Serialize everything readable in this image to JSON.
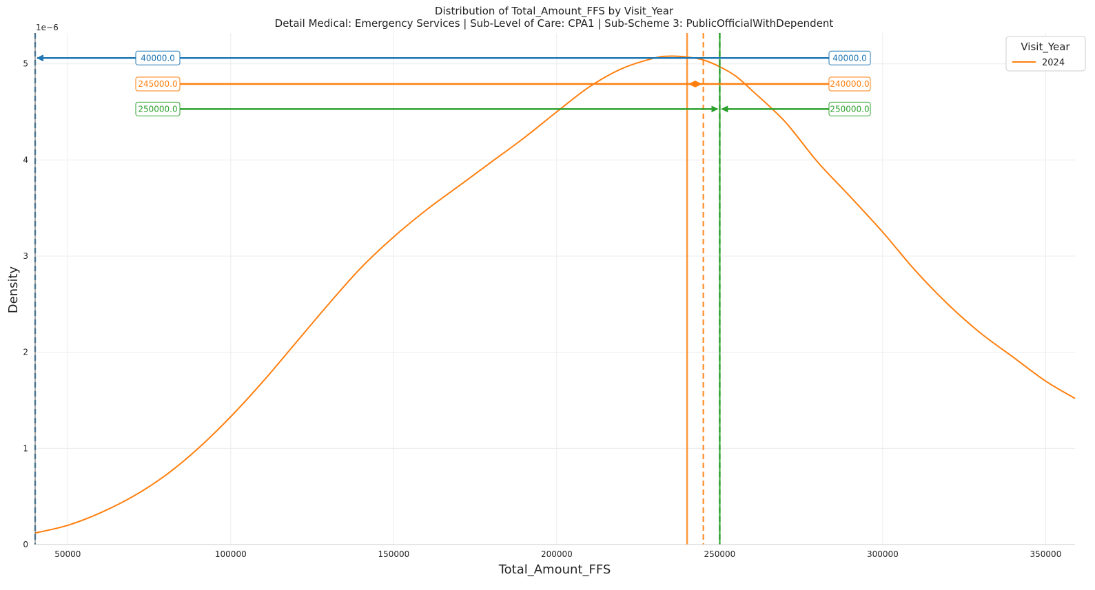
{
  "chart_data": {
    "type": "line",
    "title": "Distribution of Total_Amount_FFS by Visit_Year",
    "subtitle": "Detail Medical: Emergency Services | Sub-Level of Care: CPA1 | Sub-Scheme 3: PublicOfficialWithDependent",
    "xlabel": "Total_Amount_FFS",
    "ylabel": "Density",
    "y_offset_label": "1e−6",
    "xlim": [
      40000,
      359000
    ],
    "ylim": [
      0,
      5.32
    ],
    "x_ticks": [
      50000,
      100000,
      150000,
      200000,
      250000,
      300000,
      350000
    ],
    "y_ticks": [
      0,
      1,
      2,
      3,
      4,
      5
    ],
    "grid": true,
    "legend": {
      "title": "Visit_Year",
      "placement": "top-right",
      "entries": [
        "2024"
      ]
    },
    "series": [
      {
        "name": "2024",
        "color": "#ff7f0e",
        "x": [
          40000,
          50000,
          60000,
          70000,
          80000,
          90000,
          100000,
          110000,
          120000,
          130000,
          140000,
          150000,
          160000,
          170000,
          180000,
          190000,
          200000,
          210000,
          220000,
          230000,
          235000,
          240000,
          245000,
          250000,
          255000,
          260000,
          270000,
          280000,
          290000,
          300000,
          310000,
          320000,
          330000,
          340000,
          350000,
          359000
        ],
        "y": [
          0.12,
          0.2,
          0.33,
          0.5,
          0.72,
          1.0,
          1.33,
          1.7,
          2.1,
          2.5,
          2.88,
          3.2,
          3.48,
          3.73,
          3.98,
          4.23,
          4.5,
          4.76,
          4.95,
          5.06,
          5.08,
          5.07,
          5.04,
          4.97,
          4.87,
          4.72,
          4.4,
          3.98,
          3.62,
          3.25,
          2.85,
          2.5,
          2.2,
          1.95,
          1.7,
          1.52
        ]
      }
    ],
    "vertical_lines": [
      {
        "x": 40000,
        "color": "#1f77b4",
        "style": "dashed"
      },
      {
        "x": 240000,
        "color": "#ff7f0e",
        "style": "solid"
      },
      {
        "x": 245000,
        "color": "#ff7f0e",
        "style": "dashed"
      },
      {
        "x": 250000,
        "color": "#2ca02c",
        "style": "solid"
      },
      {
        "x": 250000,
        "color": "#2ca02c",
        "style": "dashed"
      }
    ],
    "annotations": [
      {
        "y": 5.06,
        "color": "#1f77b4",
        "left_label": "40000.0",
        "right_label": "40000.0",
        "left_target_x": 40000,
        "right_target_x": 40000
      },
      {
        "y": 4.79,
        "color": "#ff7f0e",
        "left_label": "245000.0",
        "right_label": "240000.0",
        "left_target_x": 245000,
        "right_target_x": 240000
      },
      {
        "y": 4.53,
        "color": "#2ca02c",
        "left_label": "250000.0",
        "right_label": "250000.0",
        "left_target_x": 250000,
        "right_target_x": 250000
      }
    ]
  }
}
